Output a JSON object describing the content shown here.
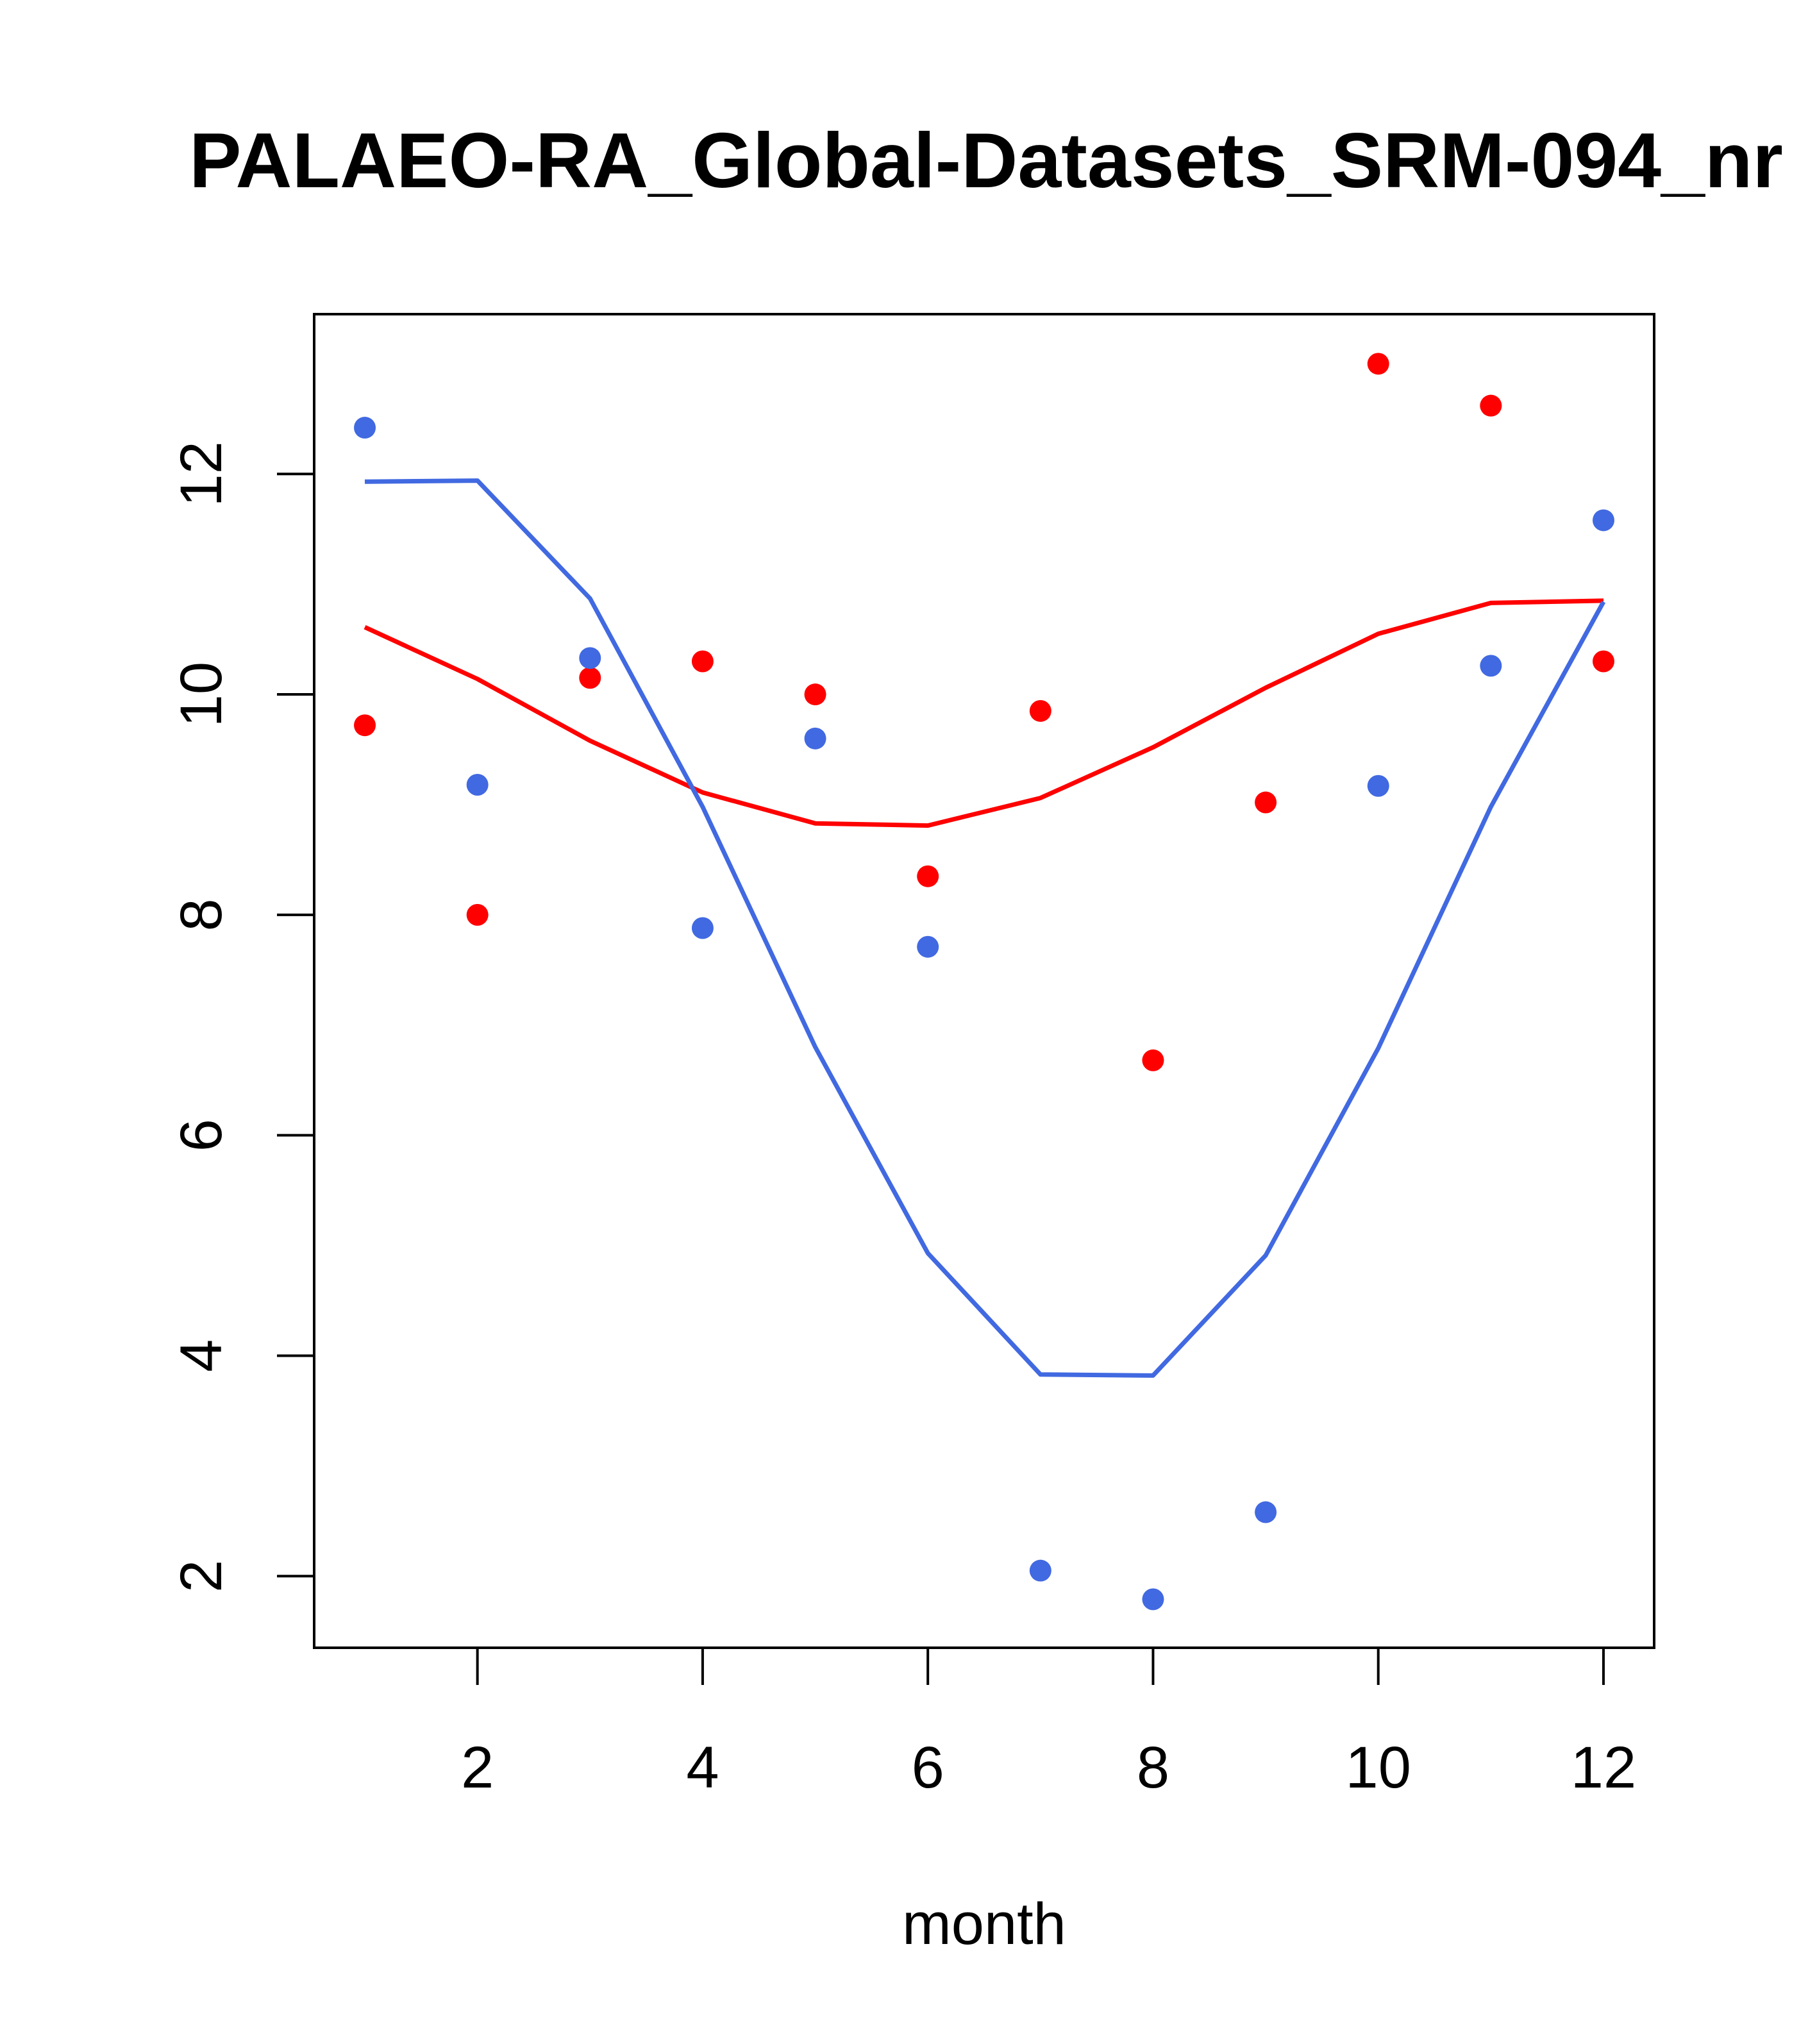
{
  "chart_data": {
    "type": "scatter",
    "title": "PALAEO-RA_Global-Datasets_SRM-094_nr",
    "xlabel": "month",
    "ylabel": "",
    "xlim": [
      0.55,
      12.45
    ],
    "ylim": [
      1.35,
      13.45
    ],
    "x_ticks": [
      2,
      4,
      6,
      8,
      10,
      12
    ],
    "y_ticks": [
      2,
      4,
      6,
      8,
      10,
      12
    ],
    "x_tick_labels": [
      "2",
      "4",
      "6",
      "8",
      "10",
      "12"
    ],
    "y_tick_labels": [
      "2",
      "4",
      "6",
      "8",
      "10",
      "12"
    ],
    "grid": false,
    "series": [
      {
        "name": "red points",
        "kind": "points",
        "color": "#ff0000",
        "x": [
          1,
          2,
          3,
          4,
          5,
          6,
          7,
          8,
          9,
          10,
          11,
          12
        ],
        "values": [
          9.72,
          8.0,
          10.15,
          10.3,
          10.0,
          8.35,
          9.85,
          6.68,
          9.02,
          13.0,
          12.62,
          10.3
        ]
      },
      {
        "name": "blue points",
        "kind": "points",
        "color": "#4169e1",
        "x": [
          1,
          2,
          3,
          4,
          5,
          6,
          7,
          8,
          9,
          10,
          11,
          12
        ],
        "values": [
          12.42,
          9.18,
          10.33,
          7.88,
          9.6,
          7.71,
          2.05,
          1.79,
          2.58,
          9.17,
          10.26,
          11.58
        ]
      },
      {
        "name": "red line",
        "kind": "line",
        "color": "#ff0000",
        "x": [
          1,
          2,
          3,
          4,
          5,
          6,
          7,
          8,
          9,
          10,
          11,
          12
        ],
        "values": [
          10.61,
          10.14,
          9.58,
          9.11,
          8.83,
          8.81,
          9.06,
          9.52,
          10.06,
          10.55,
          10.83,
          10.85
        ]
      },
      {
        "name": "blue line",
        "kind": "line",
        "color": "#4169e1",
        "x": [
          1,
          2,
          3,
          4,
          5,
          6,
          7,
          8,
          9,
          10,
          11,
          12
        ],
        "values": [
          11.93,
          11.94,
          10.87,
          8.98,
          6.8,
          4.93,
          3.83,
          3.82,
          4.91,
          6.79,
          8.98,
          10.84
        ]
      }
    ]
  }
}
